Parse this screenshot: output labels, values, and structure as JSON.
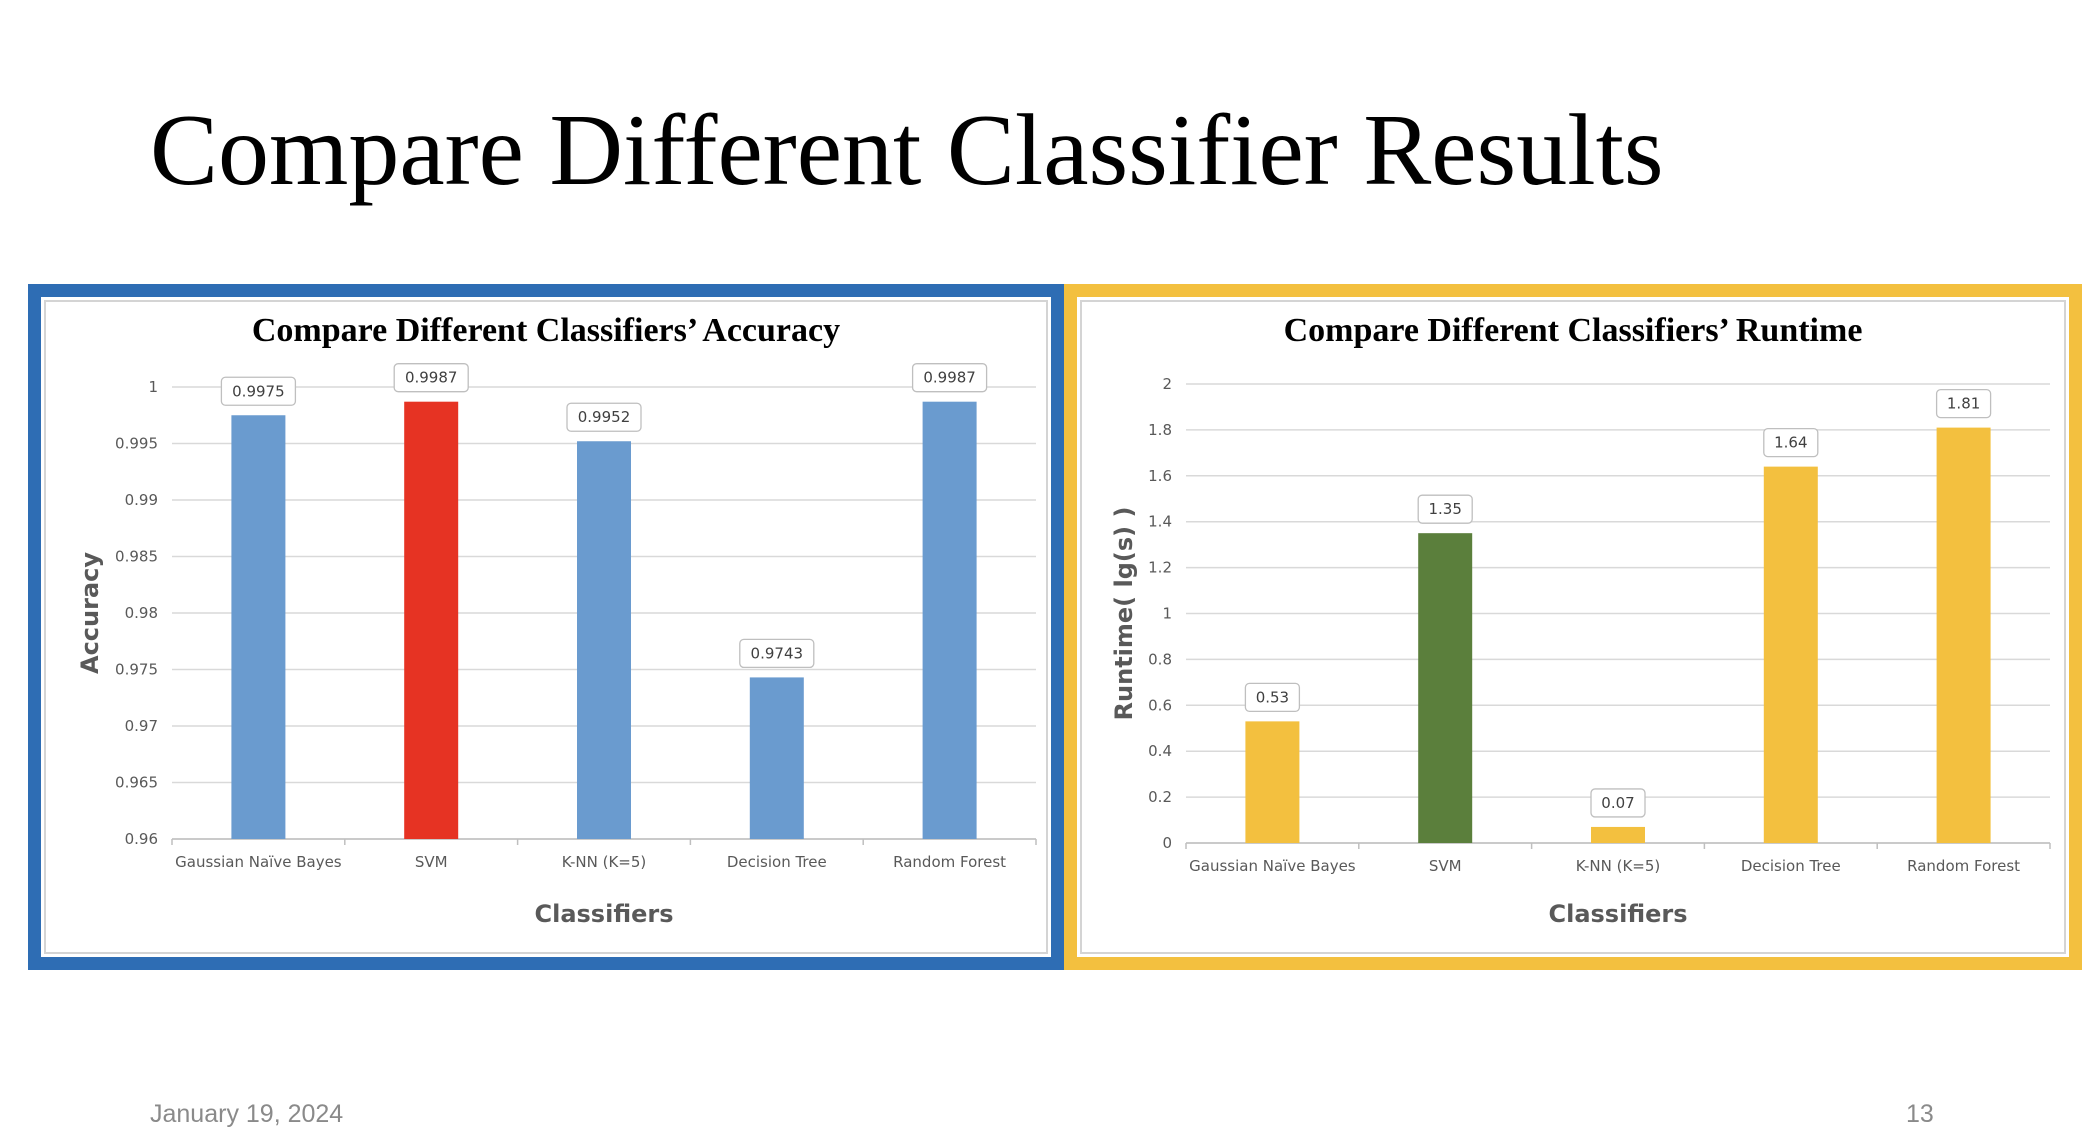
{
  "slide": {
    "title": "Compare Different Classifier Results",
    "date": "January 19, 2024",
    "page_number": "13"
  },
  "panel_colors": {
    "left": "#2e6db4",
    "right": "#f3c03f"
  },
  "chart_data": [
    {
      "type": "bar",
      "title": "Compare Different Classifiers’ Accuracy",
      "xlabel": "Classifiers",
      "ylabel": "Accuracy",
      "categories": [
        "Gaussian Naïve Bayes",
        "SVM",
        "K-NN (K=5)",
        "Decision Tree",
        "Random Forest"
      ],
      "values": [
        0.9975,
        0.9987,
        0.9952,
        0.9743,
        0.9987
      ],
      "data_labels": [
        "0.9975",
        "0.9987",
        "0.9952",
        "0.9743",
        "0.9987"
      ],
      "ylim": [
        0.96,
        1
      ],
      "yticks": [
        "0.96",
        "0.965",
        "0.97",
        "0.975",
        "0.98",
        "0.985",
        "0.99",
        "0.995",
        "1"
      ],
      "bar_colors": [
        "#6a9bcf",
        "#e63323",
        "#6a9bcf",
        "#6a9bcf",
        "#6a9bcf"
      ],
      "grid": true,
      "legend": "none"
    },
    {
      "type": "bar",
      "title": "Compare Different Classifiers’ Runtime",
      "xlabel": "Classifiers",
      "ylabel": "Runtime( lg(s) )",
      "categories": [
        "Gaussian Naïve Bayes",
        "SVM",
        "K-NN (K=5)",
        "Decision Tree",
        "Random Forest"
      ],
      "values": [
        0.53,
        1.35,
        0.07,
        1.64,
        1.81
      ],
      "data_labels": [
        "0.53",
        "1.35",
        "0.07",
        "1.64",
        "1.81"
      ],
      "ylim": [
        0,
        2
      ],
      "yticks": [
        "0",
        "0.2",
        "0.4",
        "0.6",
        "0.8",
        "1",
        "1.2",
        "1.4",
        "1.6",
        "1.8",
        "2"
      ],
      "bar_colors": [
        "#f3c03f",
        "#5b7f3c",
        "#f3c03f",
        "#f3c03f",
        "#f3c03f"
      ],
      "grid": true,
      "legend": "none"
    }
  ]
}
